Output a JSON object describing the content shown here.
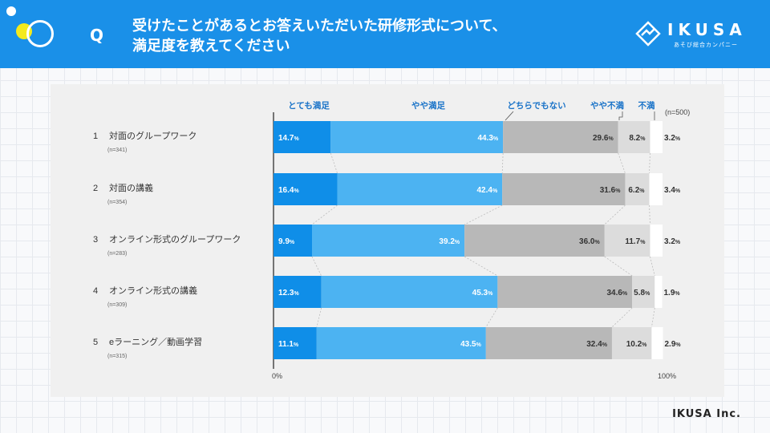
{
  "header": {
    "q_mark": "Q",
    "title_line1": "受けたことがあるとお答えいただいた研修形式について、",
    "title_line2": "満足度を教えてください",
    "logo_text": "IKUSA",
    "logo_sub": "あそび総合カンパニー"
  },
  "footer": {
    "company": "IKUSA Inc."
  },
  "colors": {
    "header_bg": "#1a90e8",
    "series": [
      "#0f8ee8",
      "#4cb3f2",
      "#b8b8b8",
      "#dcdcdc",
      "#ffffff"
    ]
  },
  "chart_data": {
    "type": "bar",
    "orientation": "horizontal-stacked-100",
    "total_n": "(n=500)",
    "categories": [
      {
        "num": "1",
        "label": "対面のグループワーク",
        "n": "(n=341)"
      },
      {
        "num": "2",
        "label": "対面の講義",
        "n": "(n=354)"
      },
      {
        "num": "3",
        "label": "オンライン形式のグループワーク",
        "n": "(n=283)"
      },
      {
        "num": "4",
        "label": "オンライン形式の講義",
        "n": "(n=309)"
      },
      {
        "num": "5",
        "label": "eラーニング／動画学習",
        "n": "(n=315)"
      }
    ],
    "series": [
      {
        "name": "とても満足",
        "values": [
          14.7,
          16.4,
          9.9,
          12.3,
          11.1
        ]
      },
      {
        "name": "やや満足",
        "values": [
          44.3,
          42.4,
          39.2,
          45.3,
          43.5
        ]
      },
      {
        "name": "どちらでもない",
        "values": [
          29.6,
          31.6,
          36.0,
          34.6,
          32.4
        ]
      },
      {
        "name": "やや不満",
        "values": [
          8.2,
          6.2,
          11.7,
          5.8,
          10.2
        ]
      },
      {
        "name": "不満",
        "values": [
          3.2,
          3.4,
          3.2,
          1.9,
          2.9
        ]
      }
    ],
    "unit": "%",
    "xlim": [
      0,
      100
    ],
    "x_ticks": [
      "0%",
      "100%"
    ]
  }
}
